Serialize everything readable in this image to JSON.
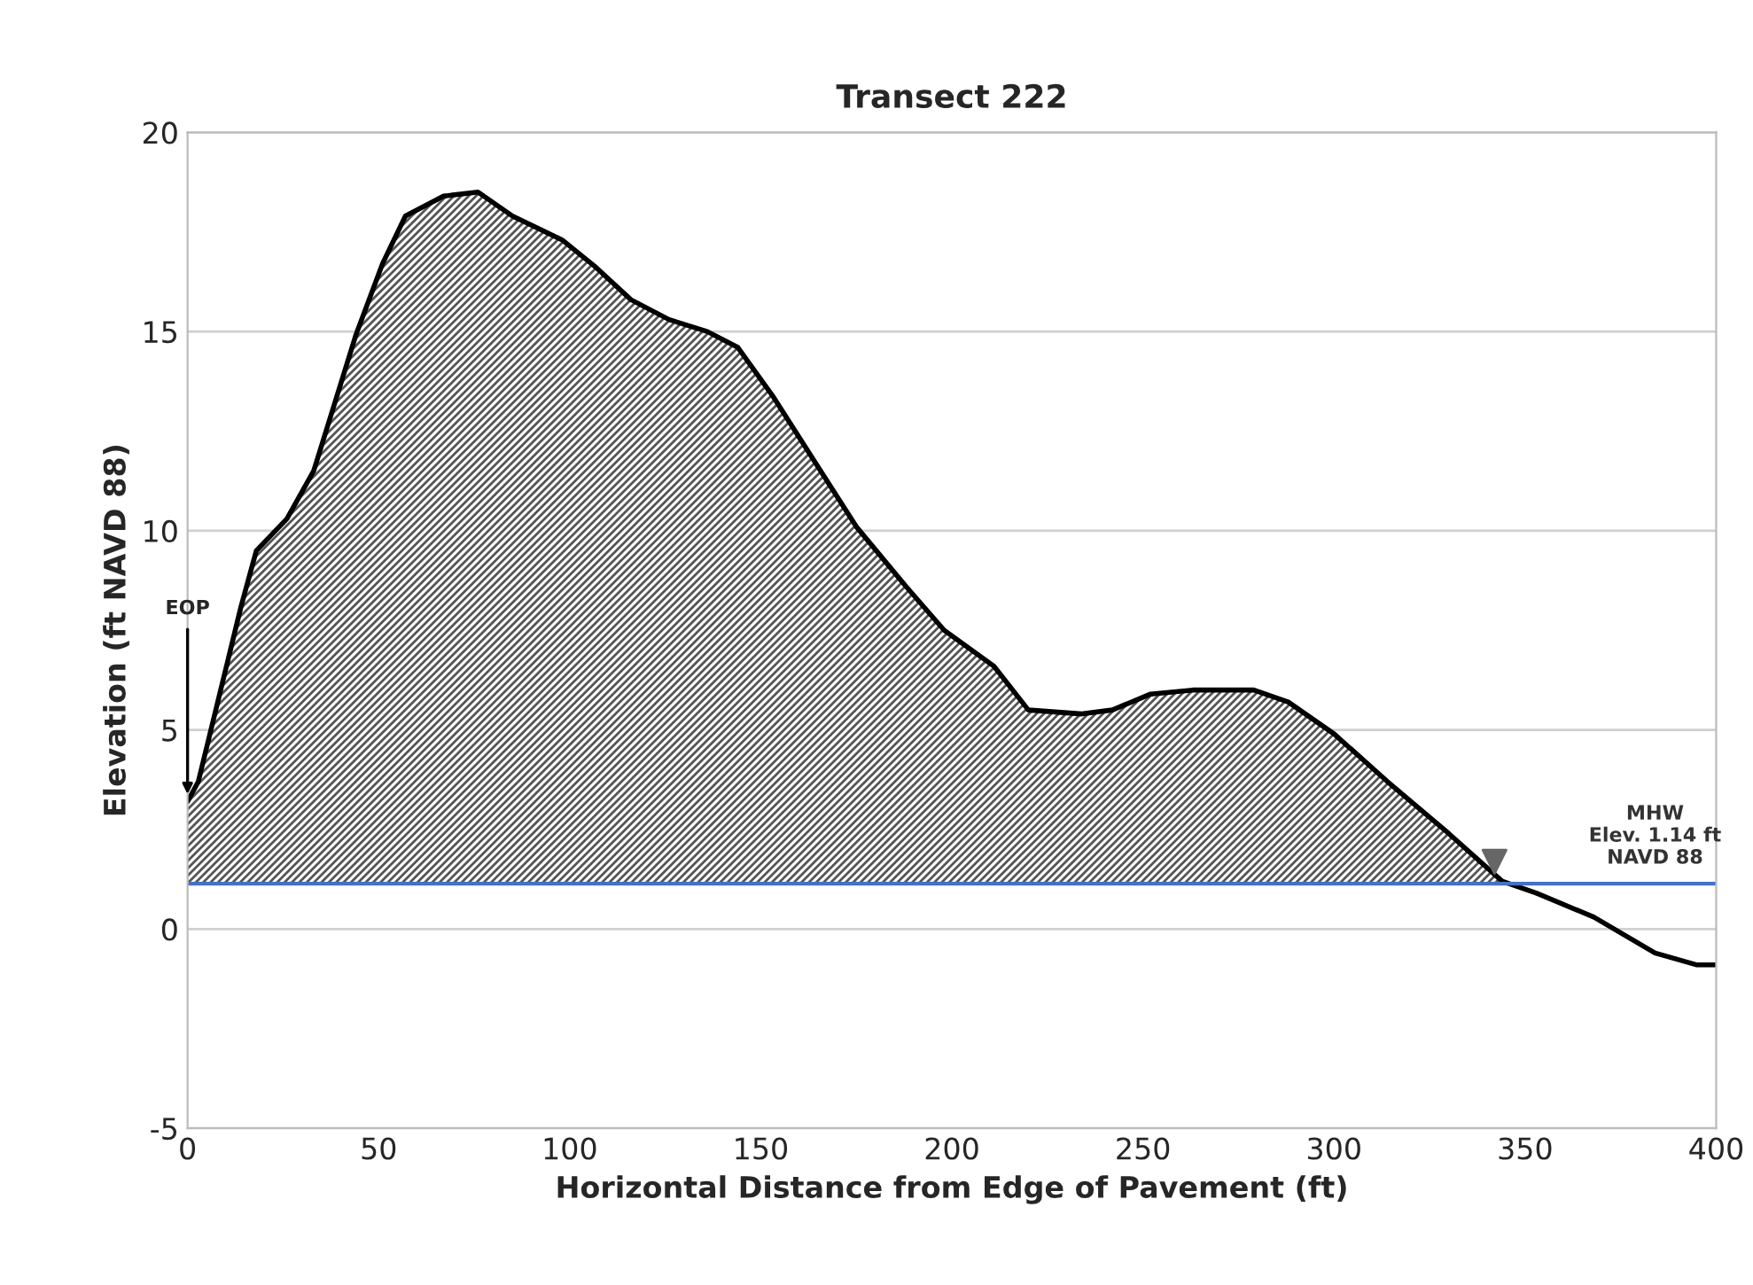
{
  "chart_data": {
    "type": "area",
    "title": "Transect 222",
    "xlabel": "Horizontal Distance from Edge of Pavement (ft)",
    "ylabel": "Elevation (ft NAVD 88)",
    "series": [
      {
        "color": "#000000",
        "x": [
          0,
          2.8,
          14,
          18,
          26,
          33,
          44,
          51,
          57,
          67,
          76,
          85,
          98,
          107,
          116,
          126,
          136,
          144,
          153,
          163,
          175,
          188,
          198,
          211,
          220,
          234,
          242,
          252,
          263,
          279,
          288,
          300,
          314,
          330,
          344
        ],
        "values": [
          3.2,
          3.7,
          8.1,
          9.5,
          10.3,
          11.5,
          14.9,
          16.7,
          17.9,
          18.4,
          18.5,
          17.9,
          17.3,
          16.6,
          15.8,
          15.3,
          15.0,
          14.6,
          13.4,
          11.9,
          10.1,
          8.6,
          7.5,
          6.6,
          5.5,
          5.4,
          5.5,
          5.9,
          6.0,
          6.0,
          5.7,
          4.9,
          3.7,
          2.4,
          1.2
        ]
      },
      {
        "type": "line",
        "color": "#000000",
        "x": [
          344,
          353,
          368,
          384,
          395,
          400
        ],
        "values": [
          1.2,
          0.9,
          0.3,
          -0.6,
          -0.9,
          -0.9
        ]
      }
    ],
    "ref_lines": [
      {
        "axis": "y",
        "value": 1.14,
        "label": "MHW\nElev. 1.14 ft\nNAVD 88",
        "color": "#4472c4"
      }
    ],
    "annotations": [
      {
        "text": "EOP",
        "x": 0,
        "y": 3.2
      }
    ],
    "xlim": [
      0,
      400
    ],
    "xticks": [
      0,
      50,
      100,
      150,
      200,
      250,
      300,
      350,
      400
    ],
    "ylim": [
      -5,
      20
    ],
    "yticks": [
      -5,
      0,
      5,
      10,
      15,
      20
    ],
    "grid": "y",
    "legend": false
  }
}
